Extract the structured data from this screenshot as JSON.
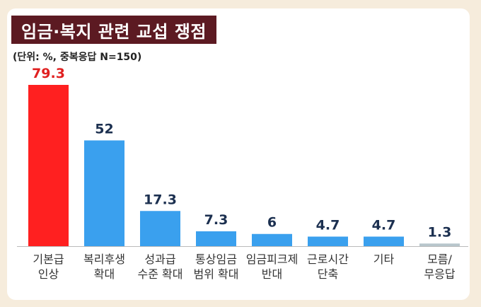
{
  "title": "임금·복지 관련 교섭 쟁점",
  "subtitle": "(단위: %, 중복응답 N=150)",
  "colors": {
    "highlight": "#ff2020",
    "highlight_label": "#e02020",
    "bar": "#3aa0ee",
    "muted_bar": "#b8c6cc",
    "value_label": "#1c3050",
    "category_label": "#333333",
    "baseline": "#bbbbbb"
  },
  "chart_data": {
    "type": "bar",
    "title": "임금·복지 관련 교섭 쟁점",
    "subtitle": "(단위: %, 중복응답 N=150)",
    "categories": [
      [
        "기본급",
        "인상"
      ],
      [
        "복리후생",
        "확대"
      ],
      [
        "성과급",
        "수준 확대"
      ],
      [
        "통상임금",
        "범위 확대"
      ],
      [
        "임금피크제",
        "반대"
      ],
      [
        "근로시간",
        "단축"
      ],
      [
        "기타"
      ],
      [
        "모름/",
        "무응답"
      ]
    ],
    "values": [
      79.3,
      52,
      17.3,
      7.3,
      6,
      4.7,
      4.7,
      1.3
    ],
    "value_labels": [
      "79.3",
      "52",
      "17.3",
      "7.3",
      "6",
      "4.7",
      "4.7",
      "1.3"
    ],
    "highlight_index": 0,
    "muted_index": 7,
    "ylim": [
      0,
      79.3
    ],
    "grid": false,
    "legend": "none"
  }
}
